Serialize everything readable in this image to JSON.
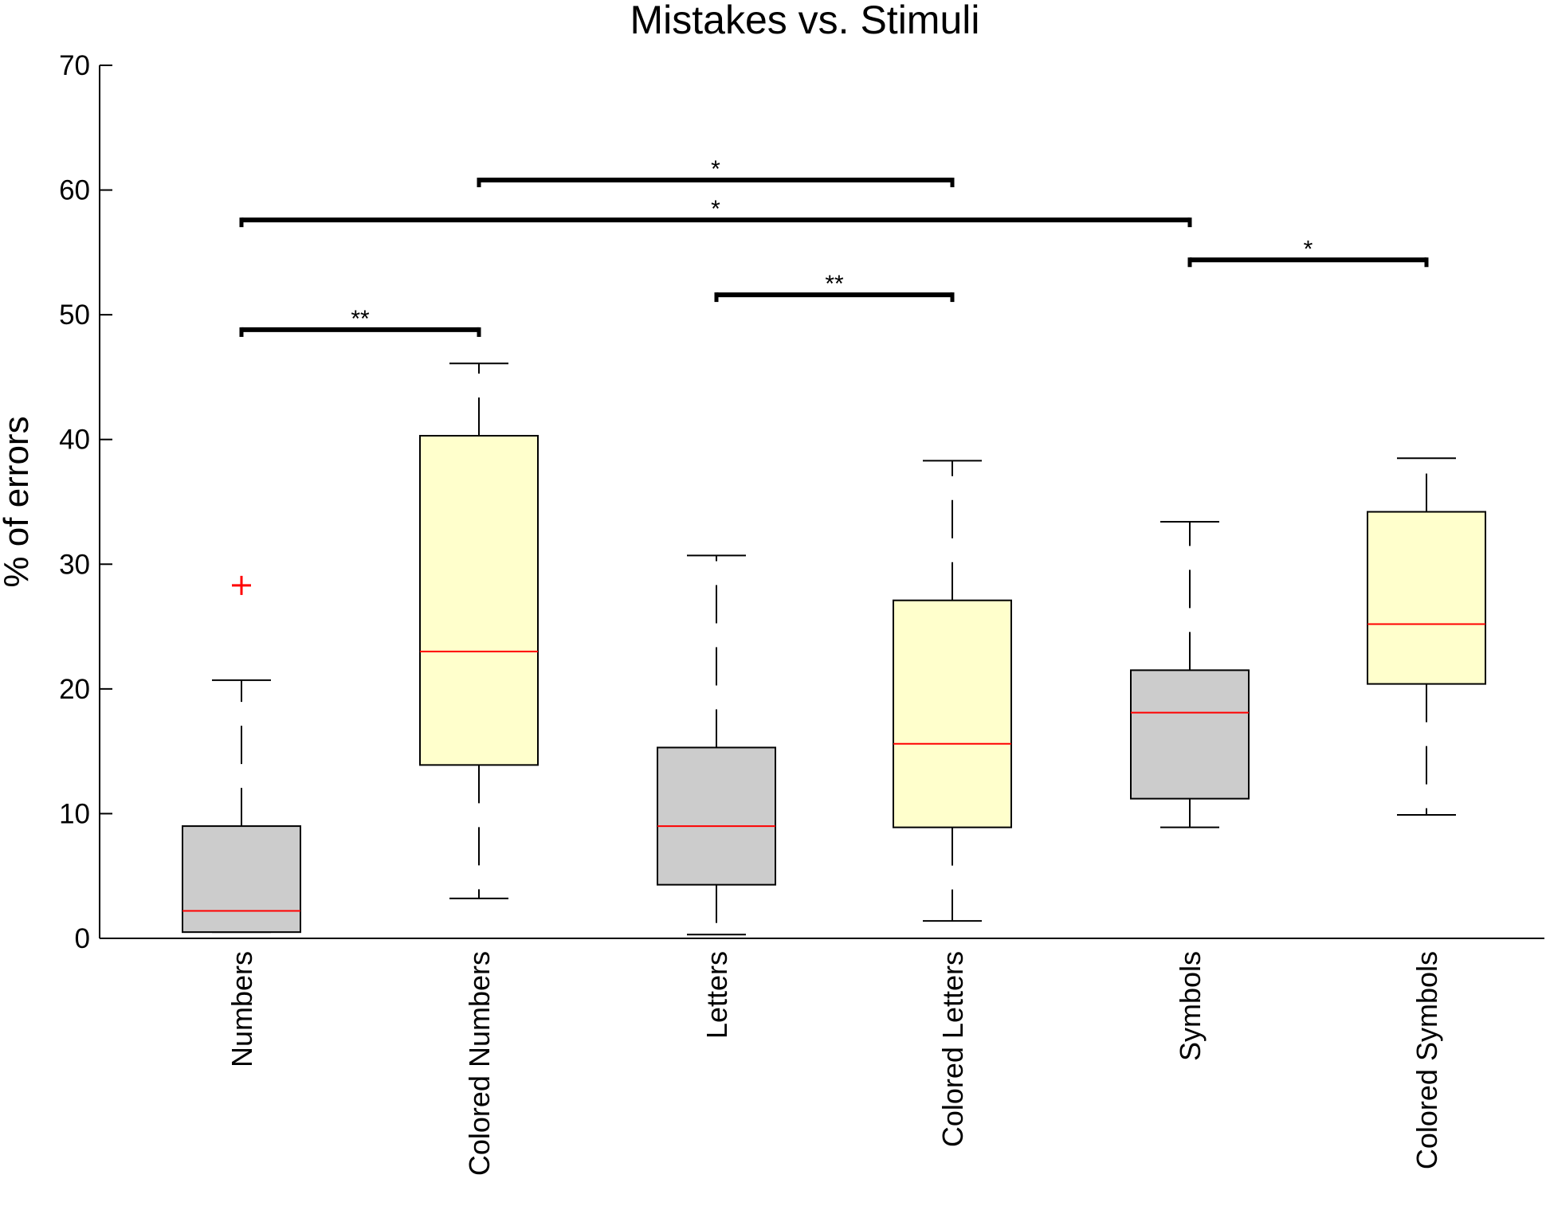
{
  "chart_data": {
    "type": "boxplot",
    "title": "Mistakes vs. Stimuli",
    "xlabel": "",
    "ylabel": "% of errors",
    "ylim": [
      0,
      70
    ],
    "yticks": [
      0,
      10,
      20,
      30,
      40,
      50,
      60,
      70
    ],
    "grid": false,
    "colors": {
      "box_gray": "#cccccc",
      "box_yellow": "#ffffcc",
      "median": "#ff0000",
      "outlier": "#ff0000",
      "axis": "#000000"
    },
    "boxes": [
      {
        "category": "Numbers",
        "fill": "gray",
        "q1": 0.5,
        "median": 2.2,
        "q3": 9.0,
        "whisker_low": 0.5,
        "whisker_high": 20.7,
        "outliers": [
          28.3
        ]
      },
      {
        "category": "Colored Numbers",
        "fill": "yellow",
        "q1": 13.9,
        "median": 23.0,
        "q3": 40.3,
        "whisker_low": 3.2,
        "whisker_high": 46.1,
        "outliers": []
      },
      {
        "category": "Letters",
        "fill": "gray",
        "q1": 4.3,
        "median": 9.0,
        "q3": 15.3,
        "whisker_low": 0.3,
        "whisker_high": 30.7,
        "outliers": []
      },
      {
        "category": "Colored Letters",
        "fill": "yellow",
        "q1": 8.9,
        "median": 15.6,
        "q3": 27.1,
        "whisker_low": 1.4,
        "whisker_high": 38.3,
        "outliers": []
      },
      {
        "category": "Symbols",
        "fill": "gray",
        "q1": 11.2,
        "median": 18.1,
        "q3": 21.5,
        "whisker_low": 8.9,
        "whisker_high": 33.4,
        "outliers": []
      },
      {
        "category": "Colored Symbols",
        "fill": "yellow",
        "q1": 20.4,
        "median": 25.2,
        "q3": 34.2,
        "whisker_low": 9.9,
        "whisker_high": 38.5,
        "outliers": []
      }
    ],
    "significance": [
      {
        "from": 0,
        "to": 1,
        "level": 48.8,
        "label": "**"
      },
      {
        "from": 2,
        "to": 3,
        "level": 51.6,
        "label": "**"
      },
      {
        "from": 1,
        "to": 3,
        "level": 60.8,
        "label": "*"
      },
      {
        "from": 0,
        "to": 4,
        "level": 57.6,
        "label": "*"
      },
      {
        "from": 4,
        "to": 5,
        "level": 54.4,
        "label": "*"
      }
    ]
  }
}
